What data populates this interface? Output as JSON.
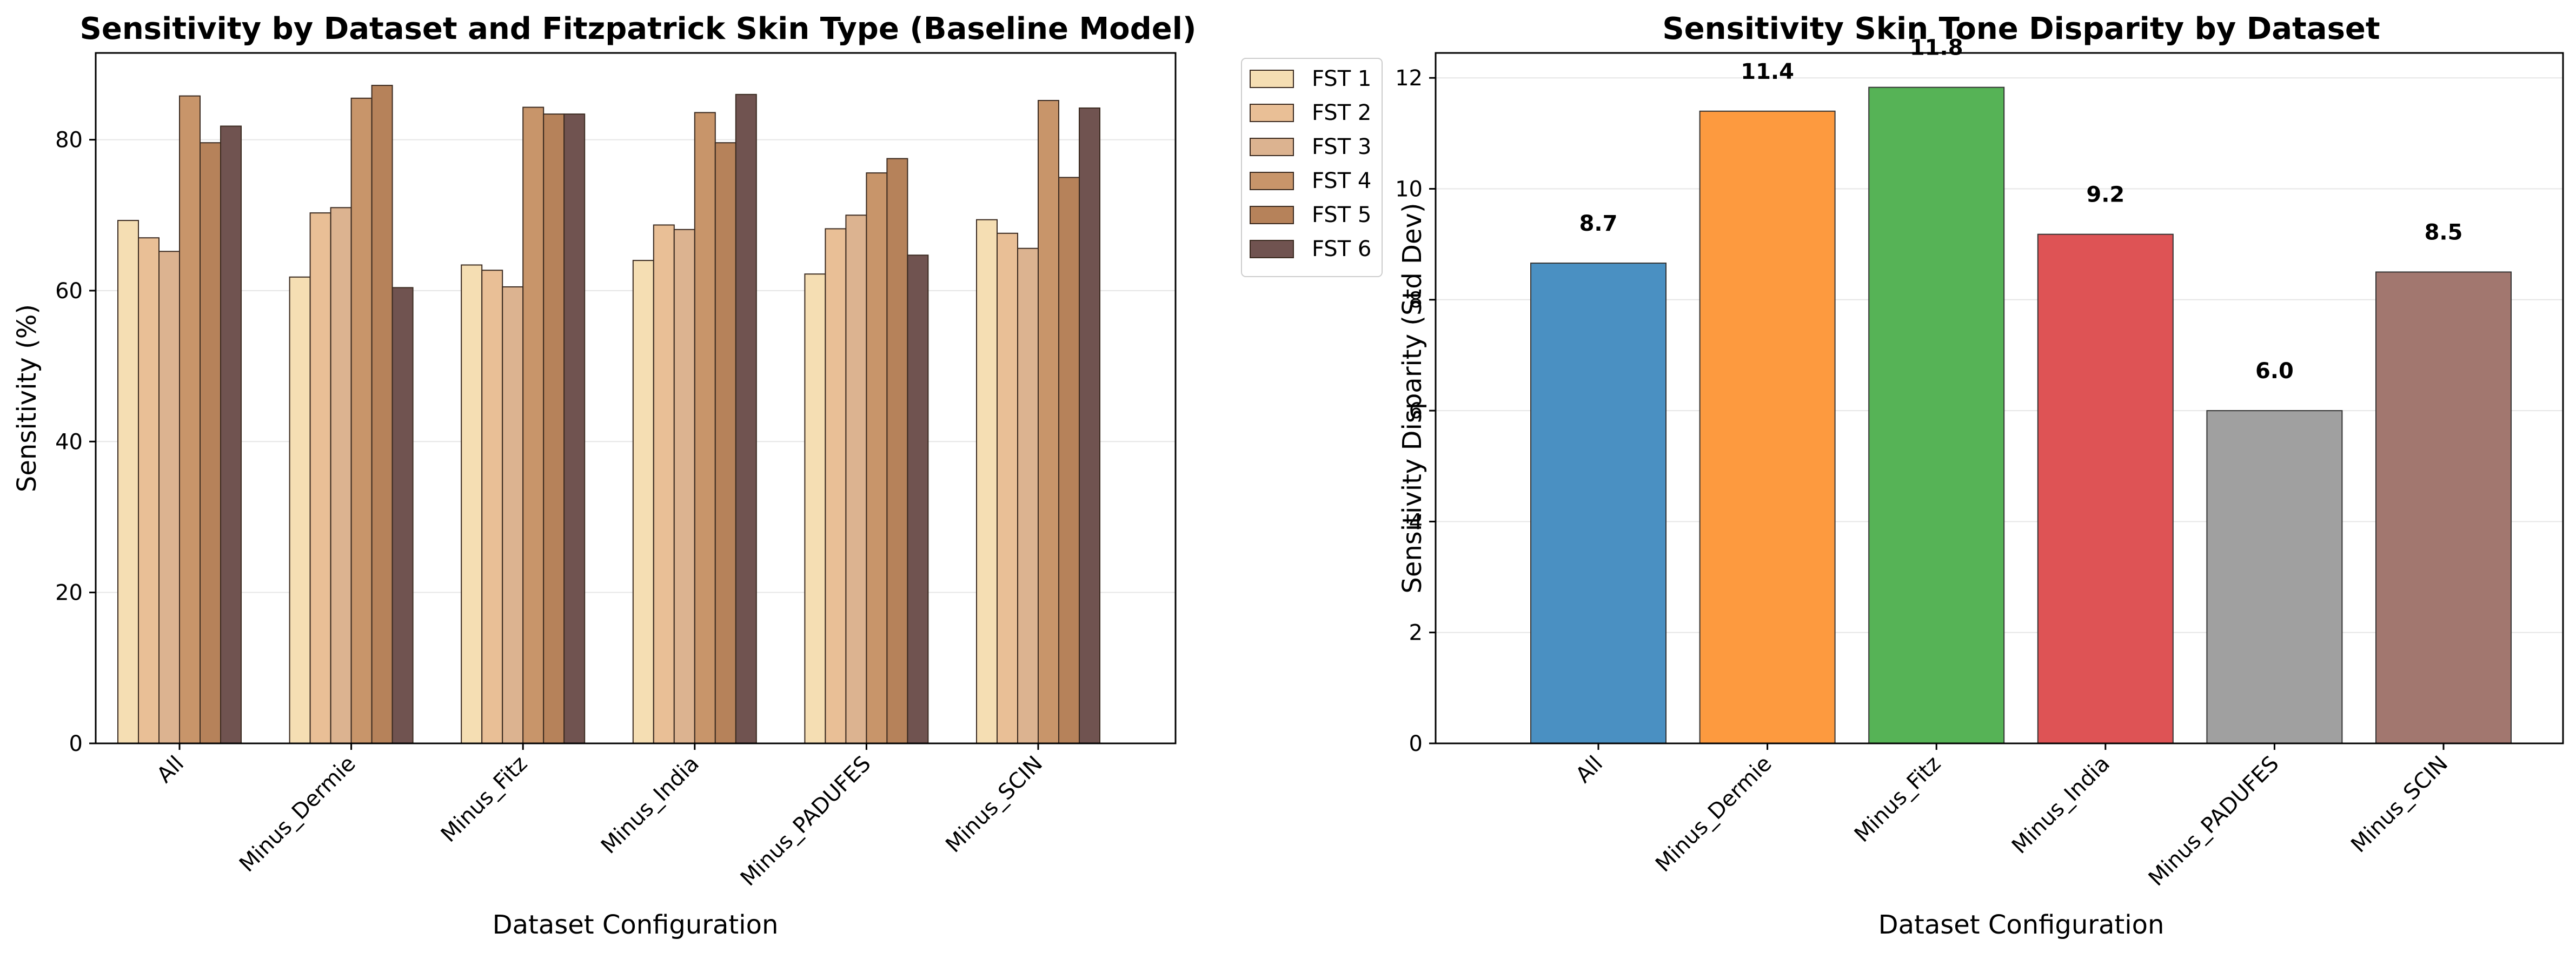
{
  "charts": {
    "left": {
      "title": "Sensitivity by Dataset and Fitzpatrick Skin Type (Baseline Model)",
      "xlabel": "Dataset Configuration",
      "ylabel": "Sensitivity (%)"
    },
    "right": {
      "title": "Sensitivity Skin Tone Disparity by Dataset",
      "xlabel": "Dataset Configuration",
      "ylabel": "Sensitivity Disparity (Std Dev)"
    }
  },
  "chart_data": [
    {
      "type": "bar",
      "title": "Sensitivity by Dataset and Fitzpatrick Skin Type (Baseline Model)",
      "xlabel": "Dataset Configuration",
      "ylabel": "Sensitivity (%)",
      "ylim": [
        0,
        91.5
      ],
      "yticks": [
        0,
        20,
        40,
        60,
        80
      ],
      "grid": true,
      "legend_position": "outside-top-right",
      "categories": [
        "All",
        "Minus_Dermie",
        "Minus_Fitz",
        "Minus_India",
        "Minus_PADUFES",
        "Minus_SCIN"
      ],
      "series": [
        {
          "name": "FST 1",
          "color": "#f5deb3",
          "values": [
            69.3,
            61.8,
            63.4,
            64.0,
            62.2,
            69.4
          ]
        },
        {
          "name": "FST 2",
          "color": "#e9bf96",
          "values": [
            67.0,
            70.3,
            62.7,
            68.7,
            68.2,
            67.6
          ]
        },
        {
          "name": "FST 3",
          "color": "#dcb390",
          "values": [
            65.2,
            71.0,
            60.5,
            68.1,
            70.0,
            65.6
          ]
        },
        {
          "name": "FST 4",
          "color": "#c8956a",
          "values": [
            85.8,
            85.5,
            84.3,
            83.6,
            75.6,
            85.2
          ]
        },
        {
          "name": "FST 5",
          "color": "#b6825a",
          "values": [
            79.6,
            87.2,
            83.4,
            79.6,
            77.5,
            75.0
          ]
        },
        {
          "name": "FST 6",
          "color": "#705350",
          "values": [
            81.8,
            60.4,
            83.4,
            86.0,
            64.7,
            84.2
          ]
        }
      ]
    },
    {
      "type": "bar",
      "title": "Sensitivity Skin Tone Disparity by Dataset",
      "xlabel": "Dataset Configuration",
      "ylabel": "Sensitivity Disparity (Std Dev)",
      "ylim": [
        0,
        12.45
      ],
      "yticks": [
        0,
        2,
        4,
        6,
        8,
        10,
        12
      ],
      "grid": true,
      "categories": [
        "All",
        "Minus_Dermie",
        "Minus_Fitz",
        "Minus_India",
        "Minus_PADUFES",
        "Minus_SCIN"
      ],
      "values": [
        8.66,
        11.4,
        11.83,
        9.18,
        6.0,
        8.5
      ],
      "value_labels": [
        "8.7",
        "11.4",
        "11.8",
        "9.2",
        "6.0",
        "8.5"
      ],
      "colors": [
        "#4a90c2",
        "#fd9a3f",
        "#56b356",
        "#de5355",
        "#a0a0a0",
        "#a2776f"
      ]
    }
  ]
}
